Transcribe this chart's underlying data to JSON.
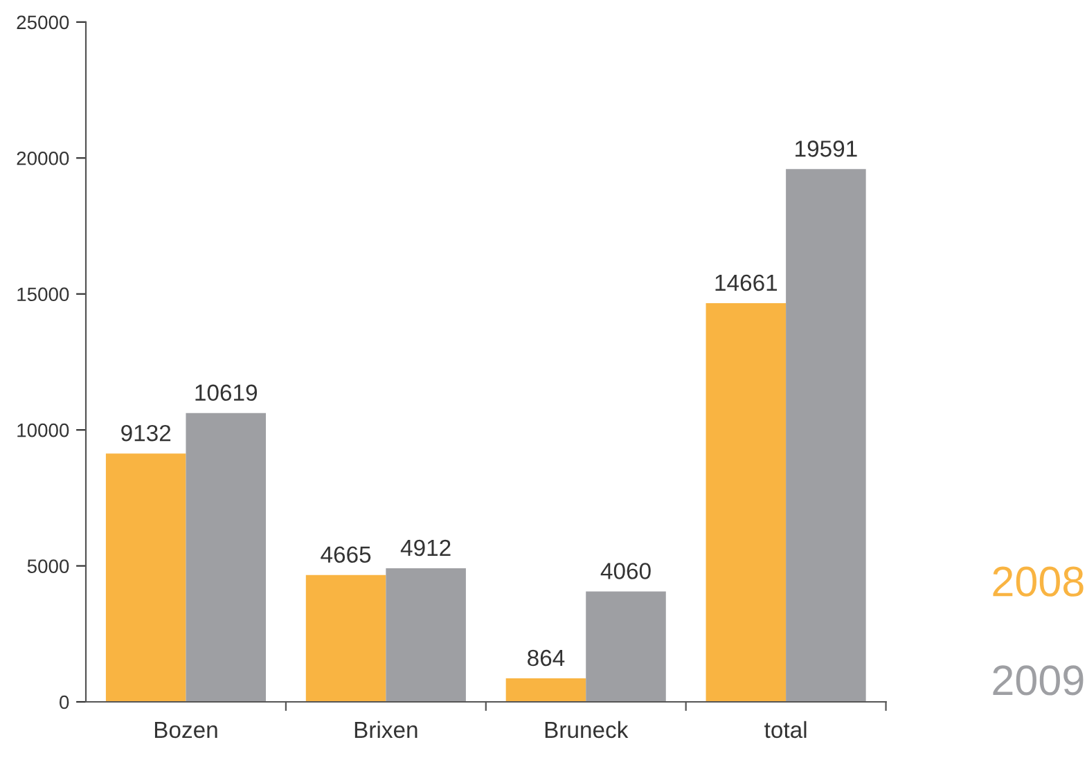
{
  "chart_data": {
    "type": "bar",
    "categories": [
      "Bozen",
      "Brixen",
      "Bruneck",
      "total"
    ],
    "series": [
      {
        "name": "2008",
        "color": "#f9b442",
        "values": [
          9132,
          4665,
          864,
          14661
        ]
      },
      {
        "name": "2009",
        "color": "#9e9fa3",
        "values": [
          10619,
          4912,
          4060,
          19591
        ]
      }
    ],
    "ylim": [
      0,
      25000
    ],
    "yticks": [
      0,
      5000,
      10000,
      15000,
      20000,
      25000
    ],
    "data_labels": true,
    "grid": false,
    "legend": "bottom right"
  }
}
